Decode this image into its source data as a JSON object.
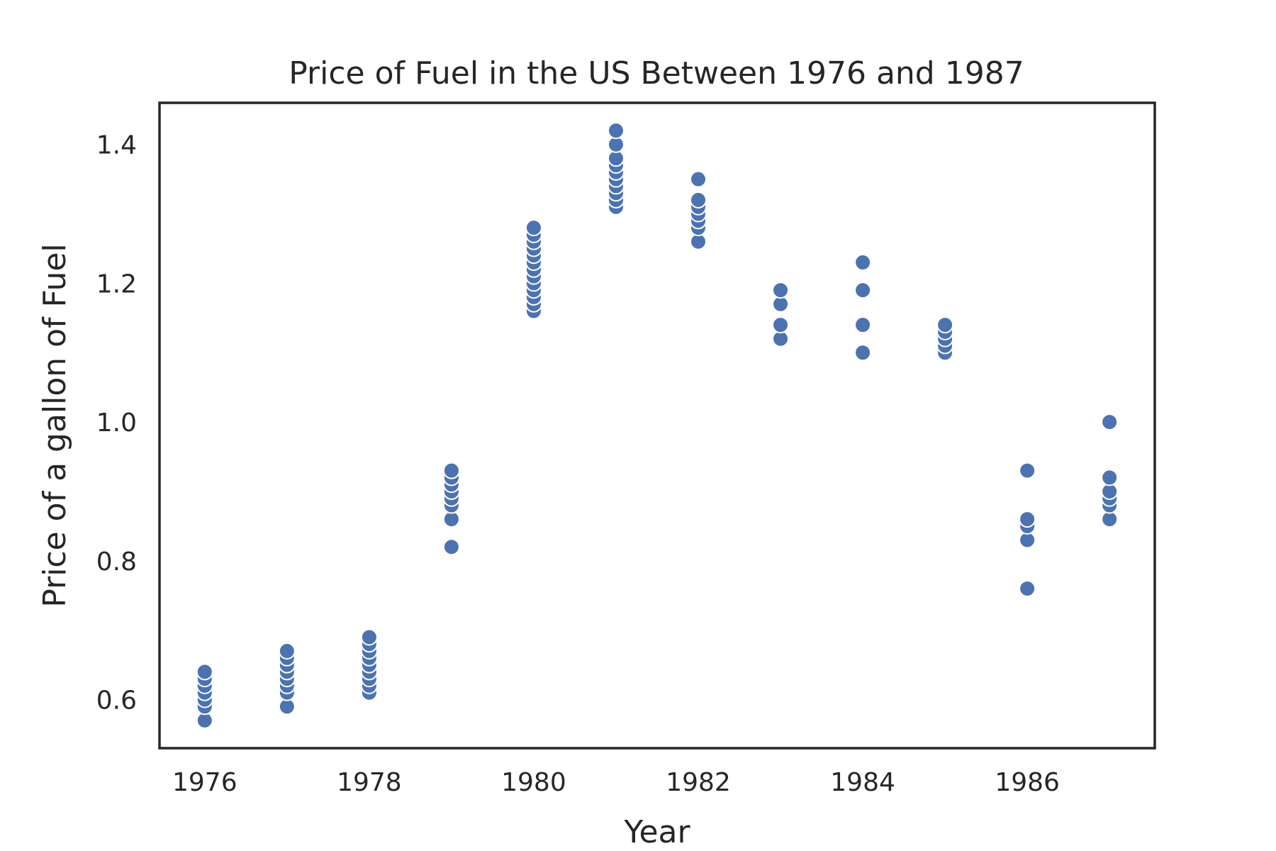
{
  "chart_data": {
    "type": "scatter",
    "title": "Price of Fuel in the US Between 1976 and 1987",
    "xlabel": "Year",
    "ylabel": "Price of a gallon of Fuel",
    "xlim": [
      1975.45,
      1987.55
    ],
    "ylim": [
      0.53,
      1.46
    ],
    "x_ticks": [
      1976,
      1978,
      1980,
      1982,
      1984,
      1986
    ],
    "x_tick_labels": [
      "1976",
      "1978",
      "1980",
      "1982",
      "1984",
      "1986"
    ],
    "y_ticks": [
      0.6,
      0.8,
      1.0,
      1.2,
      1.4
    ],
    "y_tick_labels": [
      "0.6",
      "0.8",
      "1.0",
      "1.2",
      "1.4"
    ],
    "grid": false,
    "marker_color": "#4c72b0",
    "series": [
      {
        "points": [
          {
            "x": 1976,
            "y": 0.57
          },
          {
            "x": 1976,
            "y": 0.59
          },
          {
            "x": 1976,
            "y": 0.6
          },
          {
            "x": 1976,
            "y": 0.61
          },
          {
            "x": 1976,
            "y": 0.62
          },
          {
            "x": 1976,
            "y": 0.63
          },
          {
            "x": 1976,
            "y": 0.64
          },
          {
            "x": 1977,
            "y": 0.59
          },
          {
            "x": 1977,
            "y": 0.61
          },
          {
            "x": 1977,
            "y": 0.62
          },
          {
            "x": 1977,
            "y": 0.63
          },
          {
            "x": 1977,
            "y": 0.64
          },
          {
            "x": 1977,
            "y": 0.65
          },
          {
            "x": 1977,
            "y": 0.66
          },
          {
            "x": 1977,
            "y": 0.67
          },
          {
            "x": 1978,
            "y": 0.61
          },
          {
            "x": 1978,
            "y": 0.62
          },
          {
            "x": 1978,
            "y": 0.63
          },
          {
            "x": 1978,
            "y": 0.64
          },
          {
            "x": 1978,
            "y": 0.65
          },
          {
            "x": 1978,
            "y": 0.66
          },
          {
            "x": 1978,
            "y": 0.67
          },
          {
            "x": 1978,
            "y": 0.68
          },
          {
            "x": 1978,
            "y": 0.69
          },
          {
            "x": 1979,
            "y": 0.82
          },
          {
            "x": 1979,
            "y": 0.86
          },
          {
            "x": 1979,
            "y": 0.88
          },
          {
            "x": 1979,
            "y": 0.89
          },
          {
            "x": 1979,
            "y": 0.9
          },
          {
            "x": 1979,
            "y": 0.91
          },
          {
            "x": 1979,
            "y": 0.92
          },
          {
            "x": 1979,
            "y": 0.93
          },
          {
            "x": 1980,
            "y": 1.16
          },
          {
            "x": 1980,
            "y": 1.17
          },
          {
            "x": 1980,
            "y": 1.18
          },
          {
            "x": 1980,
            "y": 1.19
          },
          {
            "x": 1980,
            "y": 1.2
          },
          {
            "x": 1980,
            "y": 1.21
          },
          {
            "x": 1980,
            "y": 1.22
          },
          {
            "x": 1980,
            "y": 1.23
          },
          {
            "x": 1980,
            "y": 1.24
          },
          {
            "x": 1980,
            "y": 1.25
          },
          {
            "x": 1980,
            "y": 1.26
          },
          {
            "x": 1980,
            "y": 1.27
          },
          {
            "x": 1980,
            "y": 1.28
          },
          {
            "x": 1981,
            "y": 1.31
          },
          {
            "x": 1981,
            "y": 1.32
          },
          {
            "x": 1981,
            "y": 1.33
          },
          {
            "x": 1981,
            "y": 1.34
          },
          {
            "x": 1981,
            "y": 1.35
          },
          {
            "x": 1981,
            "y": 1.36
          },
          {
            "x": 1981,
            "y": 1.37
          },
          {
            "x": 1981,
            "y": 1.38
          },
          {
            "x": 1981,
            "y": 1.4
          },
          {
            "x": 1981,
            "y": 1.42
          },
          {
            "x": 1982,
            "y": 1.26
          },
          {
            "x": 1982,
            "y": 1.28
          },
          {
            "x": 1982,
            "y": 1.29
          },
          {
            "x": 1982,
            "y": 1.3
          },
          {
            "x": 1982,
            "y": 1.31
          },
          {
            "x": 1982,
            "y": 1.32
          },
          {
            "x": 1982,
            "y": 1.35
          },
          {
            "x": 1983,
            "y": 1.12
          },
          {
            "x": 1983,
            "y": 1.14
          },
          {
            "x": 1983,
            "y": 1.17
          },
          {
            "x": 1983,
            "y": 1.19
          },
          {
            "x": 1984,
            "y": 1.1
          },
          {
            "x": 1984,
            "y": 1.14
          },
          {
            "x": 1984,
            "y": 1.19
          },
          {
            "x": 1984,
            "y": 1.23
          },
          {
            "x": 1985,
            "y": 1.1
          },
          {
            "x": 1985,
            "y": 1.11
          },
          {
            "x": 1985,
            "y": 1.12
          },
          {
            "x": 1985,
            "y": 1.13
          },
          {
            "x": 1985,
            "y": 1.14
          },
          {
            "x": 1986,
            "y": 0.76
          },
          {
            "x": 1986,
            "y": 0.83
          },
          {
            "x": 1986,
            "y": 0.85
          },
          {
            "x": 1986,
            "y": 0.86
          },
          {
            "x": 1986,
            "y": 0.93
          },
          {
            "x": 1987,
            "y": 0.86
          },
          {
            "x": 1987,
            "y": 0.88
          },
          {
            "x": 1987,
            "y": 0.89
          },
          {
            "x": 1987,
            "y": 0.9
          },
          {
            "x": 1987,
            "y": 0.92
          },
          {
            "x": 1987,
            "y": 1.0
          }
        ]
      }
    ]
  }
}
